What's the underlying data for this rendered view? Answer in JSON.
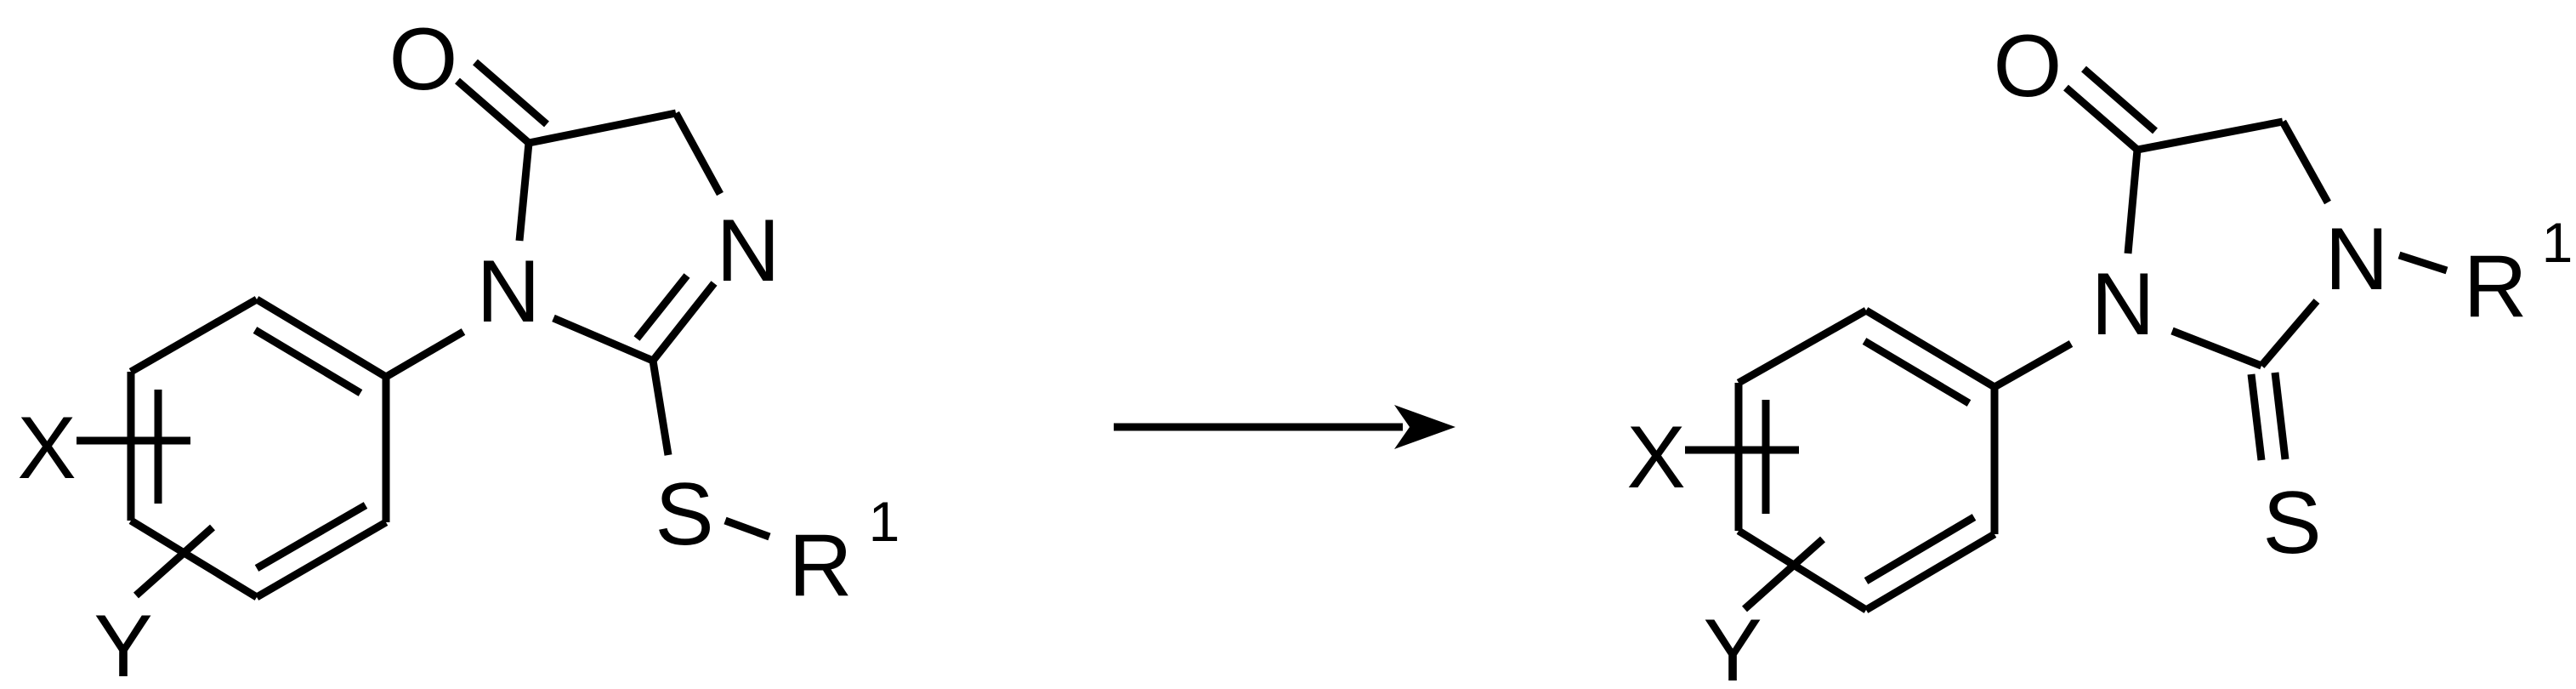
{
  "reactant": {
    "labels": {
      "O": "O",
      "N1": "N",
      "N3": "N",
      "S": "S",
      "R": "R",
      "R_sup": "1",
      "X": "X",
      "Y": "Y"
    }
  },
  "product": {
    "labels": {
      "O": "O",
      "N1": "N",
      "N3": "N",
      "S": "S",
      "R": "R",
      "R_sup": "1",
      "X": "X",
      "Y": "Y"
    }
  },
  "colors": {
    "ink": "#000000",
    "background": "#ffffff"
  }
}
